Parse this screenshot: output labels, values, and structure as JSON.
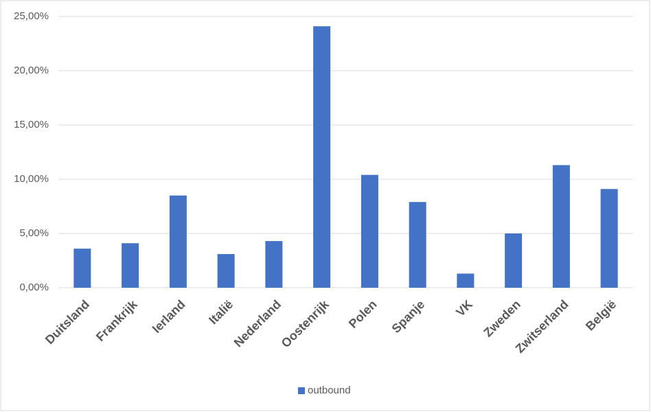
{
  "chart_data": {
    "type": "bar",
    "categories": [
      "Duitsland",
      "Frankrijk",
      "Ierland",
      "Italië",
      "Nederland",
      "Oostenrijk",
      "Polen",
      "Spanje",
      "VK",
      "Zweden",
      "Zwitserland",
      "België"
    ],
    "series": [
      {
        "name": "outbound",
        "color": "#4472c4",
        "values": [
          3.6,
          4.1,
          8.5,
          3.1,
          4.3,
          24.1,
          10.4,
          7.9,
          1.3,
          5.0,
          11.3,
          9.1
        ]
      }
    ],
    "ylim": [
      0,
      25
    ],
    "yticks": [
      {
        "value": 0,
        "label": "0,00%"
      },
      {
        "value": 5,
        "label": "5,00%"
      },
      {
        "value": 10,
        "label": "10,00%"
      },
      {
        "value": 15,
        "label": "15,00%"
      },
      {
        "value": 20,
        "label": "20,00%"
      },
      {
        "value": 25,
        "label": "25,00%"
      }
    ],
    "grid": true,
    "legend": "bottom"
  }
}
